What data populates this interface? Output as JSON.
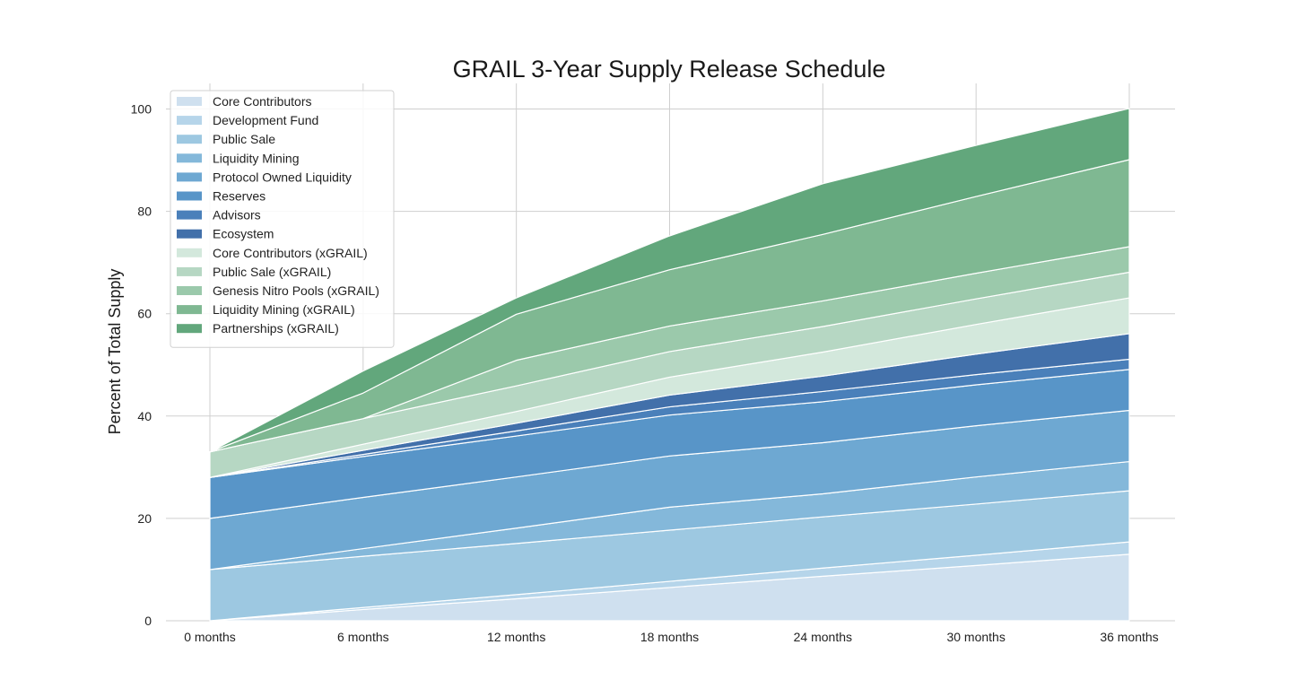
{
  "chart_data": {
    "type": "area",
    "stacked": true,
    "title": "GRAIL 3-Year Supply Release Schedule",
    "xlabel": "",
    "ylabel": "Percent of Total Supply",
    "categories": [
      "0 months",
      "6 months",
      "12 months",
      "18 months",
      "24 months",
      "30 months",
      "36 months"
    ],
    "ylim": [
      0,
      105
    ],
    "yticks": [
      0,
      20,
      40,
      60,
      80,
      100
    ],
    "grid": true,
    "legend_position": "top-left",
    "series": [
      {
        "name": "Core Contributors",
        "color": "#cfe0ef",
        "values": [
          0,
          2.2,
          4.3,
          6.5,
          8.7,
          10.8,
          13.0
        ]
      },
      {
        "name": "Development Fund",
        "color": "#b6d5ea",
        "values": [
          0,
          0.4,
          0.8,
          1.2,
          1.6,
          2.0,
          2.4
        ]
      },
      {
        "name": "Public Sale",
        "color": "#9dc8e1",
        "values": [
          10,
          10.0,
          10.0,
          10.0,
          10.0,
          10.0,
          10.0
        ]
      },
      {
        "name": "Liquidity Mining",
        "color": "#84b8da",
        "values": [
          0,
          1.5,
          3.0,
          4.5,
          4.5,
          5.3,
          5.7
        ]
      },
      {
        "name": "Protocol Owned Liquidity",
        "color": "#6ea8d2",
        "values": [
          10,
          10,
          10,
          10,
          10,
          10,
          10
        ]
      },
      {
        "name": "Reserves",
        "color": "#5895c8",
        "values": [
          8,
          8,
          8,
          8,
          8,
          8,
          8
        ]
      },
      {
        "name": "Advisors",
        "color": "#4a80ba",
        "values": [
          0,
          0.4,
          1.0,
          1.6,
          2.0,
          2.0,
          2.0
        ]
      },
      {
        "name": "Ecosystem",
        "color": "#4270aa",
        "values": [
          0,
          0.8,
          1.5,
          2.3,
          3.0,
          4.0,
          5.0
        ]
      },
      {
        "name": "Core Contributors (xGRAIL)",
        "color": "#d3e8dc",
        "values": [
          0,
          1.2,
          2.3,
          3.5,
          4.7,
          5.8,
          7.0
        ]
      },
      {
        "name": "Public Sale (xGRAIL)",
        "color": "#b6d7c3",
        "values": [
          5,
          5,
          5,
          5,
          5,
          5,
          5
        ]
      },
      {
        "name": "Genesis Nitro Pools (xGRAIL)",
        "color": "#9bc9ab",
        "values": [
          0,
          0,
          5,
          5,
          5,
          5,
          5
        ]
      },
      {
        "name": "Liquidity Mining (xGRAIL)",
        "color": "#7fb892",
        "values": [
          0,
          5,
          9,
          11,
          13,
          15,
          17
        ]
      },
      {
        "name": "Partnerships (xGRAIL)",
        "color": "#62a77c",
        "values": [
          0,
          4.3,
          3.2,
          6.6,
          9.9,
          10.0,
          10.0
        ]
      }
    ]
  }
}
